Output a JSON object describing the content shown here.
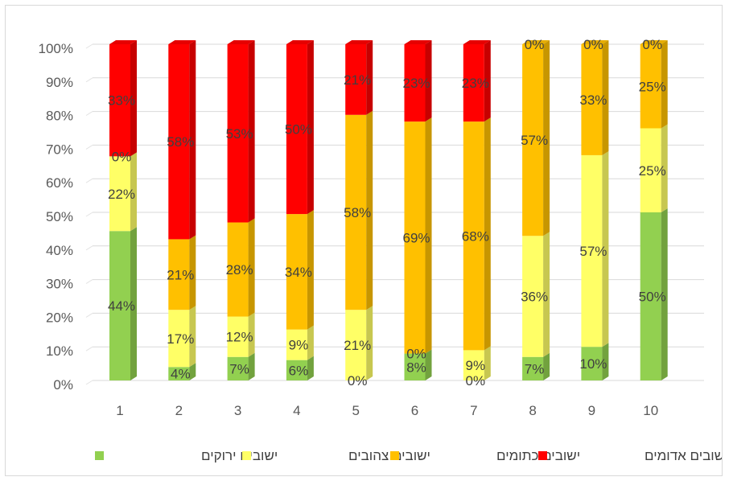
{
  "chart_data": {
    "type": "bar",
    "stacked": true,
    "percent_stacked": true,
    "three_d": true,
    "categories": [
      "1",
      "2",
      "3",
      "4",
      "5",
      "6",
      "7",
      "8",
      "9",
      "10"
    ],
    "yticks": [
      "0%",
      "10%",
      "20%",
      "30%",
      "40%",
      "50%",
      "60%",
      "70%",
      "80%",
      "90%",
      "100%"
    ],
    "ylim": [
      0,
      100
    ],
    "grid": true,
    "legend_position": "bottom",
    "series": [
      {
        "name": "ישובים ירוקים",
        "color": "#92d050",
        "values": [
          44,
          4,
          7,
          6,
          0,
          8,
          0,
          7,
          10,
          50
        ],
        "labels": [
          "44%",
          "4%",
          "7%",
          "6%",
          "0%",
          "8%",
          "0%",
          "7%",
          "10%",
          "50%"
        ]
      },
      {
        "name": "ישובים צהובים",
        "color": "#ffff66",
        "values": [
          22,
          17,
          12,
          9,
          21,
          0,
          9,
          36,
          57,
          25
        ],
        "labels": [
          "22%",
          "17%",
          "12%",
          "9%",
          "21%",
          "0%",
          "9%",
          "36%",
          "57%",
          "25%"
        ]
      },
      {
        "name": "ישובים כתומים",
        "color": "#ffc000",
        "values": [
          0,
          21,
          28,
          34,
          58,
          69,
          68,
          57,
          33,
          25
        ],
        "labels": [
          "0%",
          "21%",
          "28%",
          "34%",
          "58%",
          "69%",
          "68%",
          "57%",
          "33%",
          "25%"
        ]
      },
      {
        "name": "ישובים אדומים",
        "color": "#ff0000",
        "values": [
          33,
          58,
          53,
          50,
          21,
          23,
          23,
          0,
          0,
          0
        ],
        "labels": [
          "33%",
          "58%",
          "53%",
          "50%",
          "21%",
          "23%",
          "23%",
          "0%",
          "0%",
          "0%"
        ]
      }
    ]
  }
}
